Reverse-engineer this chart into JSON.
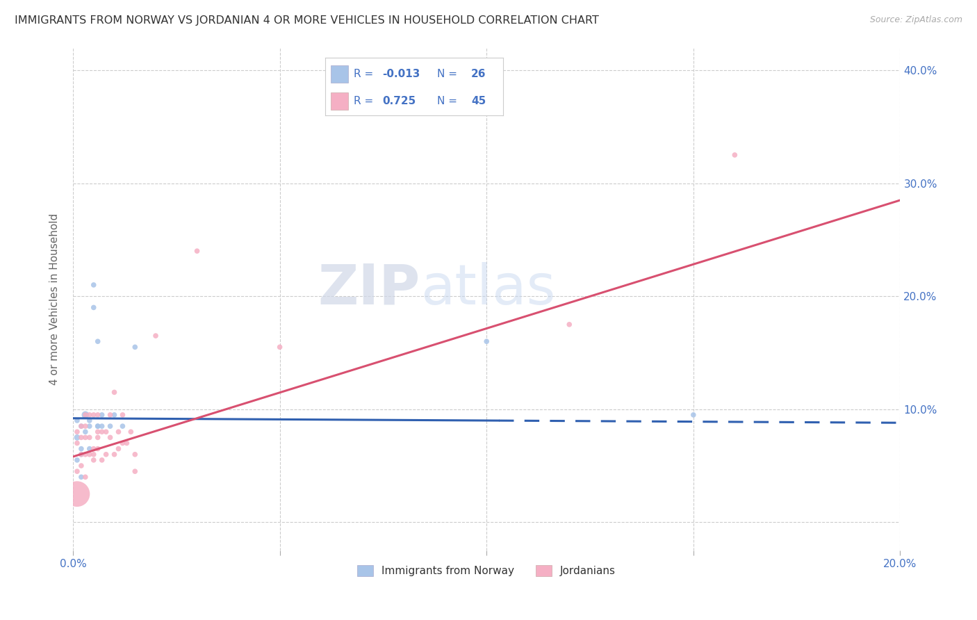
{
  "title": "IMMIGRANTS FROM NORWAY VS JORDANIAN 4 OR MORE VEHICLES IN HOUSEHOLD CORRELATION CHART",
  "source": "Source: ZipAtlas.com",
  "ylabel": "4 or more Vehicles in Household",
  "x_min": 0.0,
  "x_max": 0.2,
  "y_min": -0.025,
  "y_max": 0.42,
  "x_ticks": [
    0.0,
    0.05,
    0.1,
    0.15,
    0.2
  ],
  "y_ticks": [
    0.0,
    0.1,
    0.2,
    0.3,
    0.4
  ],
  "norway_R": -0.013,
  "norway_N": 26,
  "jordan_R": 0.725,
  "jordan_N": 45,
  "norway_color": "#a8c4e8",
  "jordan_color": "#f5afc4",
  "norway_line_color": "#3060b0",
  "jordan_line_color": "#d85070",
  "text_blue": "#4472c4",
  "background_color": "#ffffff",
  "watermark_zip": "ZIP",
  "watermark_atlas": "atlas",
  "norway_x": [
    0.001,
    0.001,
    0.001,
    0.002,
    0.002,
    0.002,
    0.002,
    0.003,
    0.003,
    0.003,
    0.004,
    0.004,
    0.004,
    0.005,
    0.005,
    0.006,
    0.006,
    0.006,
    0.007,
    0.007,
    0.009,
    0.01,
    0.012,
    0.015,
    0.1,
    0.15
  ],
  "norway_y": [
    0.075,
    0.09,
    0.055,
    0.085,
    0.06,
    0.065,
    0.04,
    0.095,
    0.095,
    0.08,
    0.085,
    0.09,
    0.065,
    0.21,
    0.19,
    0.085,
    0.16,
    0.085,
    0.095,
    0.085,
    0.085,
    0.095,
    0.085,
    0.155,
    0.16,
    0.095
  ],
  "norway_size": [
    40,
    30,
    30,
    30,
    30,
    30,
    30,
    30,
    60,
    30,
    30,
    30,
    30,
    30,
    30,
    30,
    30,
    30,
    30,
    30,
    30,
    30,
    30,
    30,
    30,
    30
  ],
  "jordan_x": [
    0.001,
    0.001,
    0.001,
    0.001,
    0.002,
    0.002,
    0.002,
    0.002,
    0.003,
    0.003,
    0.003,
    0.003,
    0.003,
    0.004,
    0.004,
    0.004,
    0.005,
    0.005,
    0.005,
    0.005,
    0.006,
    0.006,
    0.006,
    0.006,
    0.007,
    0.007,
    0.008,
    0.008,
    0.009,
    0.009,
    0.01,
    0.01,
    0.011,
    0.011,
    0.012,
    0.012,
    0.013,
    0.014,
    0.015,
    0.015,
    0.02,
    0.03,
    0.05,
    0.12,
    0.16
  ],
  "jordan_y": [
    0.025,
    0.045,
    0.07,
    0.08,
    0.05,
    0.06,
    0.075,
    0.085,
    0.04,
    0.06,
    0.075,
    0.085,
    0.095,
    0.06,
    0.075,
    0.095,
    0.055,
    0.06,
    0.065,
    0.095,
    0.065,
    0.075,
    0.08,
    0.095,
    0.055,
    0.08,
    0.06,
    0.08,
    0.075,
    0.095,
    0.06,
    0.115,
    0.065,
    0.08,
    0.07,
    0.095,
    0.07,
    0.08,
    0.045,
    0.06,
    0.165,
    0.24,
    0.155,
    0.175,
    0.325
  ],
  "jordan_size": [
    700,
    30,
    30,
    30,
    30,
    30,
    30,
    30,
    30,
    30,
    30,
    30,
    30,
    30,
    30,
    30,
    30,
    30,
    30,
    30,
    30,
    30,
    30,
    30,
    30,
    30,
    30,
    30,
    30,
    30,
    30,
    30,
    30,
    30,
    30,
    30,
    30,
    30,
    30,
    30,
    30,
    30,
    30,
    30,
    30
  ],
  "norway_trend_x0": 0.0,
  "norway_trend_x_solid_end": 0.103,
  "norway_trend_x1": 0.2,
  "norway_trend_y0": 0.092,
  "norway_trend_y1": 0.088,
  "jordan_trend_x0": 0.0,
  "jordan_trend_x1": 0.2,
  "jordan_trend_y0": 0.058,
  "jordan_trend_y1": 0.285
}
